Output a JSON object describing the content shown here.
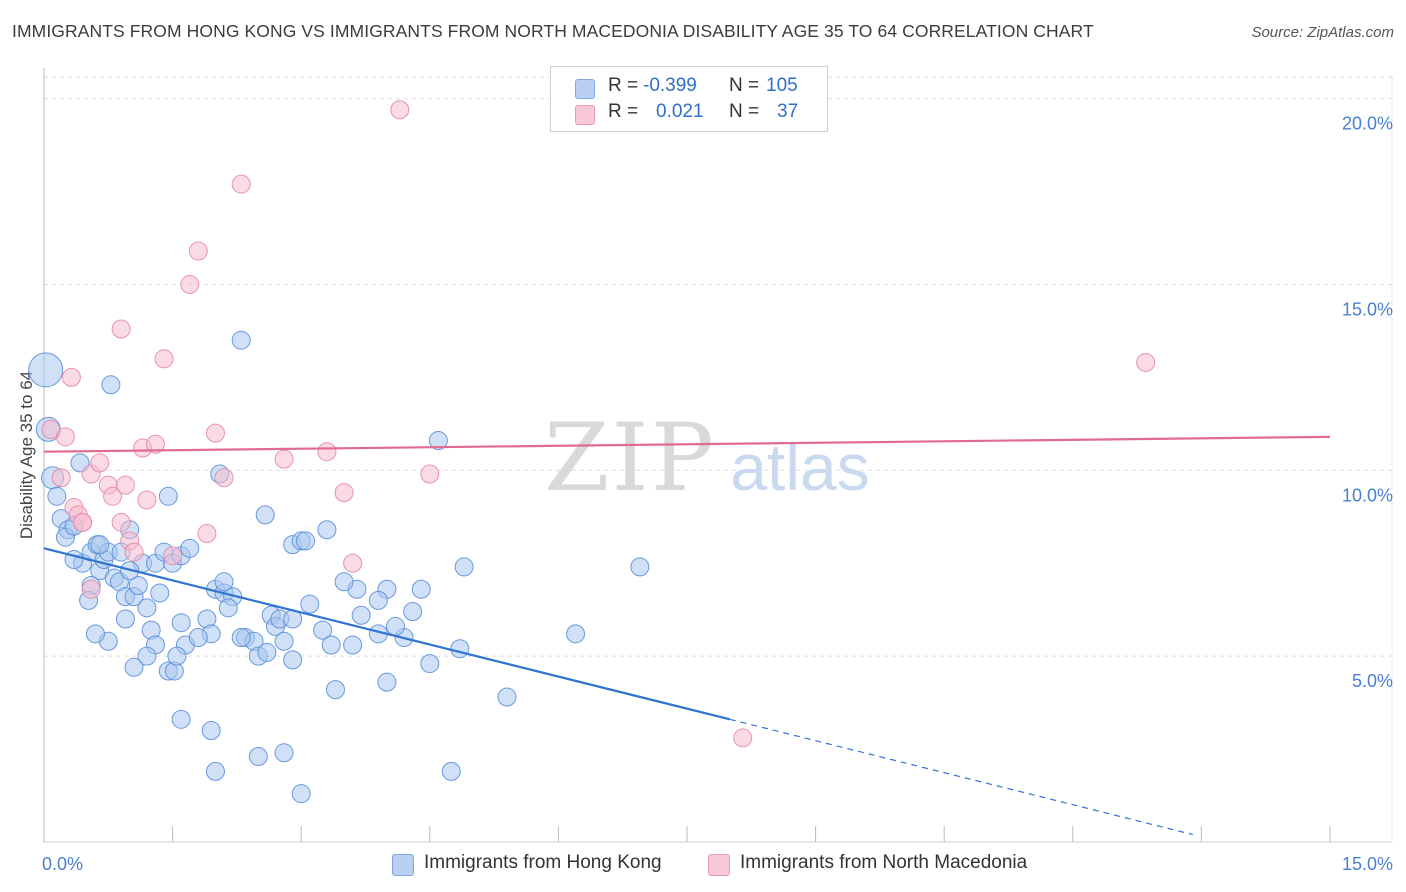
{
  "title": "IMMIGRANTS FROM HONG KONG VS IMMIGRANTS FROM NORTH MACEDONIA DISABILITY AGE 35 TO 64 CORRELATION CHART",
  "source": "Source: ZipAtlas.com",
  "watermark": {
    "zip": "ZIP",
    "atlas": "atlas"
  },
  "legend": {
    "rows": [
      {
        "r_label": "R =",
        "r_value": "-0.399",
        "n_label": "N =",
        "n_value": "105"
      },
      {
        "r_label": "R =",
        "r_value": "0.021",
        "n_label": "N =",
        "n_value": "37"
      }
    ]
  },
  "bottom_legend": [
    "Immigrants from Hong Kong",
    "Immigrants from North Macedonia"
  ],
  "colors": {
    "blue_fill": "#a9c6f0",
    "blue_stroke": "#5b8fd8",
    "blue_line": "#2f74d0",
    "pink_fill": "#f5bcd0",
    "pink_stroke": "#e58aaa",
    "pink_line": "#e06a90",
    "tick_text": "#4a7fd0",
    "grid": "#dedede"
  },
  "chart_data": {
    "type": "scatter",
    "title": "IMMIGRANTS FROM HONG KONG VS IMMIGRANTS FROM NORTH MACEDONIA DISABILITY AGE 35 TO 64 CORRELATION CHART",
    "xlabel": "",
    "ylabel": "Disability Age 35 to 64",
    "xlim": [
      0,
      15
    ],
    "ylim": [
      0,
      20.5
    ],
    "x_tick_labels": [
      "0.0%",
      "15.0%"
    ],
    "y_ticks": [
      5,
      10,
      15,
      20
    ],
    "y_tick_labels": [
      "5.0%",
      "10.0%",
      "15.0%",
      "20.0%"
    ],
    "grid": true,
    "legend_position": "top-center",
    "series": [
      {
        "name": "Immigrants from Hong Kong",
        "color": "#a9c6f0",
        "points": [
          [
            0.02,
            12.7
          ],
          [
            0.05,
            11.1
          ],
          [
            0.1,
            9.8
          ],
          [
            0.15,
            9.3
          ],
          [
            0.2,
            8.7
          ],
          [
            0.28,
            8.4
          ],
          [
            0.25,
            8.2
          ],
          [
            0.35,
            8.5
          ],
          [
            0.42,
            10.2
          ],
          [
            0.45,
            7.5
          ],
          [
            0.55,
            7.8
          ],
          [
            0.62,
            8.0
          ],
          [
            0.65,
            7.3
          ],
          [
            0.55,
            6.9
          ],
          [
            0.52,
            6.5
          ],
          [
            0.7,
            7.6
          ],
          [
            0.75,
            7.8
          ],
          [
            0.82,
            7.1
          ],
          [
            0.88,
            7.0
          ],
          [
            0.9,
            7.8
          ],
          [
            0.95,
            6.6
          ],
          [
            1.05,
            6.6
          ],
          [
            1.1,
            6.9
          ],
          [
            1.0,
            8.4
          ],
          [
            0.78,
            12.3
          ],
          [
            0.75,
            5.4
          ],
          [
            1.15,
            7.5
          ],
          [
            1.3,
            7.5
          ],
          [
            1.4,
            7.8
          ],
          [
            1.5,
            7.5
          ],
          [
            1.6,
            7.7
          ],
          [
            1.45,
            9.3
          ],
          [
            1.25,
            5.7
          ],
          [
            1.3,
            5.3
          ],
          [
            1.2,
            5.0
          ],
          [
            1.45,
            4.6
          ],
          [
            1.52,
            4.6
          ],
          [
            1.05,
            4.7
          ],
          [
            1.6,
            5.9
          ],
          [
            1.65,
            5.3
          ],
          [
            1.9,
            6.0
          ],
          [
            1.95,
            5.6
          ],
          [
            1.7,
            7.9
          ],
          [
            2.0,
            6.8
          ],
          [
            2.1,
            6.7
          ],
          [
            2.2,
            6.6
          ],
          [
            2.15,
            6.3
          ],
          [
            2.05,
            9.9
          ],
          [
            2.3,
            13.5
          ],
          [
            2.35,
            5.5
          ],
          [
            2.45,
            5.4
          ],
          [
            2.5,
            5.0
          ],
          [
            2.65,
            6.1
          ],
          [
            2.7,
            5.8
          ],
          [
            2.75,
            6.0
          ],
          [
            2.8,
            5.4
          ],
          [
            2.9,
            4.9
          ],
          [
            2.58,
            8.8
          ],
          [
            2.9,
            8.0
          ],
          [
            3.0,
            8.1
          ],
          [
            3.05,
            8.1
          ],
          [
            3.1,
            6.4
          ],
          [
            3.25,
            5.7
          ],
          [
            3.35,
            5.3
          ],
          [
            3.4,
            4.1
          ],
          [
            3.6,
            5.3
          ],
          [
            3.65,
            6.8
          ],
          [
            3.7,
            6.1
          ],
          [
            3.9,
            5.6
          ],
          [
            4.0,
            6.8
          ],
          [
            4.0,
            4.3
          ],
          [
            4.2,
            5.5
          ],
          [
            4.3,
            6.2
          ],
          [
            4.4,
            6.8
          ],
          [
            4.5,
            4.8
          ],
          [
            4.6,
            10.8
          ],
          [
            4.85,
            5.2
          ],
          [
            4.9,
            7.4
          ],
          [
            5.4,
            3.9
          ],
          [
            6.2,
            5.6
          ],
          [
            6.95,
            7.4
          ],
          [
            1.95,
            3.0
          ],
          [
            2.0,
            1.9
          ],
          [
            2.5,
            2.3
          ],
          [
            2.8,
            2.4
          ],
          [
            3.0,
            1.3
          ],
          [
            4.75,
            1.9
          ],
          [
            1.6,
            3.3
          ],
          [
            3.3,
            8.4
          ],
          [
            2.3,
            5.5
          ],
          [
            0.65,
            8.0
          ],
          [
            0.95,
            6.0
          ],
          [
            1.2,
            6.3
          ],
          [
            1.8,
            5.5
          ],
          [
            2.1,
            7.0
          ],
          [
            3.5,
            7.0
          ],
          [
            2.9,
            6.0
          ],
          [
            0.35,
            7.6
          ],
          [
            1.0,
            7.3
          ],
          [
            1.55,
            5.0
          ],
          [
            2.6,
            5.1
          ],
          [
            0.6,
            5.6
          ],
          [
            4.1,
            5.8
          ],
          [
            3.9,
            6.5
          ],
          [
            1.35,
            6.7
          ]
        ]
      },
      {
        "name": "Immigrants from North Macedonia",
        "color": "#f5bcd0",
        "points": [
          [
            0.08,
            11.1
          ],
          [
            0.25,
            10.9
          ],
          [
            0.32,
            12.5
          ],
          [
            0.2,
            9.8
          ],
          [
            0.35,
            9.0
          ],
          [
            0.4,
            8.8
          ],
          [
            0.45,
            8.6
          ],
          [
            0.55,
            9.9
          ],
          [
            0.65,
            10.2
          ],
          [
            0.75,
            9.6
          ],
          [
            0.8,
            9.3
          ],
          [
            0.9,
            8.6
          ],
          [
            0.95,
            9.6
          ],
          [
            1.0,
            8.1
          ],
          [
            1.05,
            7.8
          ],
          [
            1.15,
            10.6
          ],
          [
            1.2,
            9.2
          ],
          [
            1.3,
            10.7
          ],
          [
            1.4,
            13.0
          ],
          [
            1.5,
            7.7
          ],
          [
            1.7,
            15.0
          ],
          [
            1.8,
            15.9
          ],
          [
            1.9,
            8.3
          ],
          [
            2.0,
            11.0
          ],
          [
            2.1,
            9.8
          ],
          [
            2.3,
            17.7
          ],
          [
            2.8,
            10.3
          ],
          [
            3.3,
            10.5
          ],
          [
            3.5,
            9.4
          ],
          [
            3.6,
            7.5
          ],
          [
            4.15,
            19.7
          ],
          [
            4.5,
            9.9
          ],
          [
            0.9,
            13.8
          ],
          [
            0.55,
            6.8
          ],
          [
            8.15,
            2.8
          ],
          [
            12.85,
            12.9
          ],
          [
            0.45,
            8.6
          ]
        ]
      }
    ],
    "trendlines": [
      {
        "series": "Immigrants from Hong Kong",
        "x": [
          0.0,
          8.0
        ],
        "y": [
          7.9,
          3.3
        ],
        "dashed_extension_x": [
          8.0,
          13.4
        ],
        "dashed_extension_y": [
          3.3,
          0.2
        ]
      },
      {
        "series": "Immigrants from North Macedonia",
        "x": [
          0.0,
          15.0
        ],
        "y": [
          10.5,
          10.9
        ]
      }
    ]
  }
}
